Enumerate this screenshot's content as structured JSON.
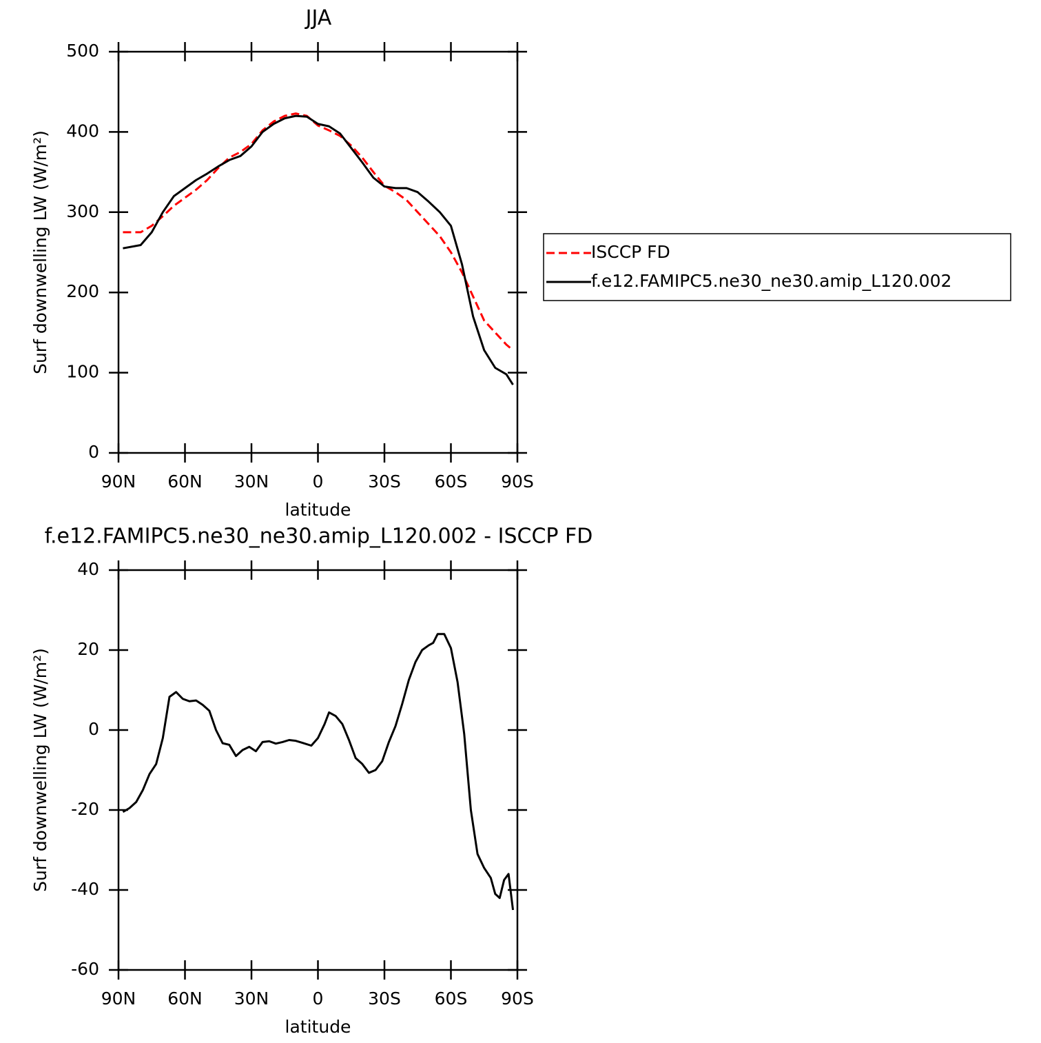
{
  "chart_data": [
    {
      "type": "line",
      "title": "JJA",
      "xlabel": "latitude",
      "ylabel": "Surf downwelling LW (W/m²)",
      "x": [
        88,
        80,
        75,
        70,
        65,
        60,
        55,
        50,
        45,
        40,
        35,
        30,
        25,
        20,
        15,
        10,
        5,
        0,
        -5,
        -10,
        -15,
        -20,
        -25,
        -30,
        -35,
        -40,
        -45,
        -50,
        -55,
        -60,
        -65,
        -70,
        -75,
        -80,
        -85,
        -88
      ],
      "series": [
        {
          "name": "ISCCP FD",
          "color": "#ff0000",
          "linestyle": "dashed",
          "values": [
            275,
            275,
            283,
            295,
            308,
            318,
            328,
            340,
            355,
            368,
            375,
            385,
            402,
            413,
            420,
            423,
            420,
            408,
            402,
            395,
            383,
            368,
            350,
            333,
            325,
            315,
            300,
            285,
            270,
            250,
            225,
            195,
            165,
            150,
            135,
            128
          ]
        },
        {
          "name": "f.e12.FAMIPC5.ne30_ne30.amip_L120.002",
          "color": "#000000",
          "linestyle": "solid",
          "values": [
            255,
            259,
            275,
            300,
            320,
            330,
            340,
            348,
            357,
            365,
            370,
            382,
            400,
            410,
            417,
            420,
            419,
            410,
            407,
            398,
            380,
            362,
            343,
            332,
            330,
            330,
            325,
            313,
            300,
            283,
            235,
            170,
            128,
            106,
            98,
            85
          ]
        }
      ],
      "xlim": [
        90,
        -90
      ],
      "xticks": [
        {
          "value": 90,
          "label": "90N"
        },
        {
          "value": 60,
          "label": "60N"
        },
        {
          "value": 30,
          "label": "30N"
        },
        0,
        {
          "value": -30,
          "label": "30S"
        },
        {
          "value": -60,
          "label": "60S"
        },
        {
          "value": -90,
          "label": "90S"
        }
      ],
      "ylim": [
        0,
        500
      ],
      "yticks": [
        0,
        100,
        200,
        300,
        400,
        500
      ],
      "legend": "right"
    },
    {
      "type": "line",
      "title": "f.e12.FAMIPC5.ne30_ne30.amip_L120.002 - ISCCP FD",
      "xlabel": "latitude",
      "ylabel": "Surf downwelling LW (W/m²)",
      "x": [
        88,
        85,
        82,
        79,
        76,
        73,
        70,
        67,
        64,
        61,
        58,
        55,
        52,
        49,
        46,
        43,
        40,
        37,
        34,
        31,
        28,
        25,
        22,
        19,
        16,
        13,
        10,
        7,
        3,
        0,
        -3,
        -5,
        -8,
        -11,
        -14,
        -17,
        -20,
        -23,
        -26,
        -29,
        -32,
        -35,
        -38,
        -41,
        -44,
        -47,
        -50,
        -52,
        -54,
        -57,
        -60,
        -63,
        -66,
        -69,
        -72,
        -75,
        -78,
        -80,
        -82,
        -84,
        -86,
        -88
      ],
      "series": [
        {
          "color": "#000000",
          "linestyle": "solid",
          "values": [
            -20.5,
            -19.5,
            -18,
            -15,
            -11,
            -8.5,
            -2,
            8.3,
            9.5,
            7.8,
            7.2,
            7.4,
            6.3,
            4.8,
            0,
            -3.3,
            -3.7,
            -6.5,
            -5,
            -4.2,
            -5.3,
            -3,
            -2.8,
            -3.4,
            -3,
            -2.5,
            -2.7,
            -3.2,
            -3.9,
            -2,
            1.5,
            4.4,
            3.5,
            1.5,
            -2.5,
            -7,
            -8.5,
            -10.7,
            -10,
            -7.8,
            -3,
            1,
            6.5,
            12.5,
            17,
            20,
            21.2,
            21.8,
            24,
            24,
            20.5,
            12,
            -1,
            -20,
            -31,
            -34.5,
            -37,
            -41,
            -42,
            -37.5,
            -36,
            -45
          ]
        }
      ],
      "xlim": [
        90,
        -90
      ],
      "xticks": [
        {
          "value": 90,
          "label": "90N"
        },
        {
          "value": 60,
          "label": "60N"
        },
        {
          "value": 30,
          "label": "30N"
        },
        0,
        {
          "value": -30,
          "label": "30S"
        },
        {
          "value": -60,
          "label": "60S"
        },
        {
          "value": -90,
          "label": "90S"
        }
      ],
      "ylim": [
        -60,
        40
      ],
      "yticks": [
        -60,
        -40,
        -20,
        0,
        20,
        40
      ]
    }
  ]
}
